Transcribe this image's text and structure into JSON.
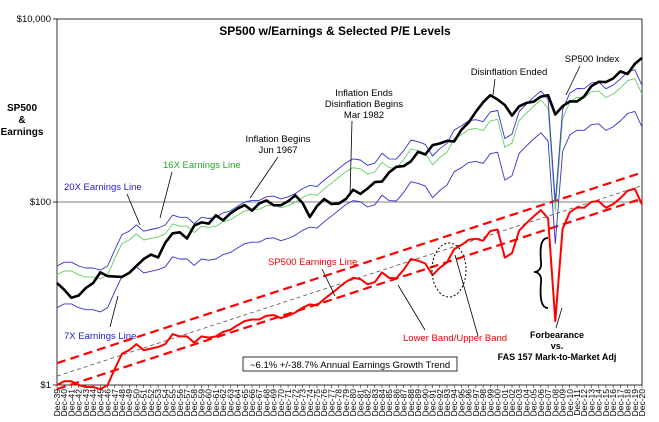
{
  "chart_data": {
    "type": "line",
    "title": "SP500 w/Earnings & Selected P/E Levels",
    "ylabel_lines": [
      "SP500",
      "&",
      "Earnings"
    ],
    "yscale": "log",
    "ylim": [
      1,
      10000
    ],
    "y_ticks": [
      {
        "value": 1,
        "label": "$1"
      },
      {
        "value": 100,
        "label": "$100"
      },
      {
        "value": 10000,
        "label": "$10,000"
      }
    ],
    "xlim": [
      1939,
      2020
    ],
    "x_tick_labels": [
      "Dec-39",
      "Dec-40",
      "Dec-41",
      "Dec-42",
      "Dec-43",
      "Dec-44",
      "Dec-45",
      "Dec-46",
      "Dec-47",
      "Dec-48",
      "Dec-49",
      "Dec-50",
      "Dec-51",
      "Dec-52",
      "Dec-53",
      "Dec-54",
      "Dec-55",
      "Dec-56",
      "Dec-57",
      "Dec-58",
      "Dec-59",
      "Dec-60",
      "Dec-61",
      "Dec-62",
      "Dec-63",
      "Dec-64",
      "Dec-65",
      "Dec-66",
      "Dec-67",
      "Dec-68",
      "Dec-69",
      "Dec-70",
      "Dec-71",
      "Dec-72",
      "Dec-73",
      "Dec-74",
      "Dec-75",
      "Dec-76",
      "Dec-77",
      "Dec-78",
      "Dec-79",
      "Dec-80",
      "Dec-81",
      "Dec-82",
      "Dec-83",
      "Dec-84",
      "Dec-85",
      "Dec-86",
      "Dec-87",
      "Dec-88",
      "Dec-89",
      "Dec-90",
      "Dec-91",
      "Dec-92",
      "Dec-93",
      "Dec-94",
      "Dec-95",
      "Dec-96",
      "Dec-97",
      "Dec-98",
      "Dec-99",
      "Dec-00",
      "Dec-01",
      "Dec-02",
      "Dec-03",
      "Dec-04",
      "Dec-05",
      "Dec-06",
      "Dec-07",
      "Dec-08",
      "Dec-09",
      "Dec-10",
      "Dec-11",
      "Dec-12",
      "Dec-13",
      "Dec-14",
      "Dec-15",
      "Dec-16",
      "Dec-17",
      "Dec-18",
      "Dec-19",
      "Dec-20"
    ],
    "x_tick_years": [
      1939,
      1940,
      1941,
      1942,
      1943,
      1944,
      1945,
      1946,
      1947,
      1948,
      1949,
      1950,
      1951,
      1952,
      1953,
      1954,
      1955,
      1956,
      1957,
      1958,
      1959,
      1960,
      1961,
      1962,
      1963,
      1964,
      1965,
      1966,
      1967,
      1968,
      1969,
      1970,
      1971,
      1972,
      1973,
      1974,
      1975,
      1976,
      1977,
      1978,
      1979,
      1980,
      1981,
      1982,
      1983,
      1984,
      1985,
      1986,
      1987,
      1988,
      1989,
      1990,
      1991,
      1992,
      1993,
      1994,
      1995,
      1996,
      1997,
      1998,
      1999,
      2000,
      2001,
      2002,
      2003,
      2004,
      2005,
      2006,
      2007,
      2008,
      2009,
      2010,
      2011,
      2012,
      2013,
      2014,
      2015,
      2016,
      2017,
      2018,
      2019,
      2020
    ],
    "series": [
      {
        "name": "SP500 Index",
        "color": "#000000",
        "width": 2.6,
        "x": [
          1939,
          1940,
          1941,
          1942,
          1943,
          1944,
          1945,
          1946,
          1947,
          1948,
          1949,
          1950,
          1951,
          1952,
          1953,
          1954,
          1955,
          1956,
          1957,
          1958,
          1959,
          1960,
          1961,
          1962,
          1963,
          1964,
          1965,
          1966,
          1967,
          1968,
          1969,
          1970,
          1971,
          1972,
          1973,
          1974,
          1975,
          1976,
          1977,
          1978,
          1979,
          1980,
          1981,
          1982,
          1983,
          1984,
          1985,
          1986,
          1987,
          1988,
          1989,
          1990,
          1991,
          1992,
          1993,
          1994,
          1995,
          1996,
          1997,
          1998,
          1999,
          2000,
          2001,
          2002,
          2003,
          2004,
          2005,
          2006,
          2007,
          2008,
          2009,
          2010,
          2011,
          2012,
          2013,
          2014,
          2015,
          2016,
          2017,
          2018,
          2019,
          2020
        ],
        "y": [
          13,
          11,
          9,
          9.5,
          11.5,
          13,
          17,
          15.5,
          15.3,
          15.2,
          16.8,
          20,
          23.8,
          26.6,
          24.8,
          35.9,
          45.5,
          46.7,
          39.9,
          55.2,
          59.9,
          58.1,
          71.6,
          63.1,
          75.0,
          84.8,
          92.4,
          80.3,
          96.5,
          103.9,
          92.1,
          92.2,
          102.1,
          118.1,
          97.6,
          68.6,
          90.2,
          107.5,
          95.1,
          96.1,
          107.9,
          135.8,
          122.6,
          140.6,
          164.9,
          167.2,
          211.3,
          242.2,
          247.1,
          277.7,
          353.4,
          330.2,
          417.1,
          435.7,
          466.5,
          459.3,
          615.9,
          740.7,
          970.4,
          1229.2,
          1469.3,
          1320.3,
          1148.1,
          879.8,
          1111.9,
          1211.9,
          1248.3,
          1418.3,
          1468.4,
          903.3,
          1115.1,
          1257.6,
          1257.6,
          1426.2,
          1848.4,
          2058.9,
          2043.9,
          2238.8,
          2673.6,
          2506.9,
          3230.8,
          3756.1
        ]
      },
      {
        "name": "SP500 Earnings Line",
        "color": "#ff0000",
        "width": 2.0,
        "x": [
          1939,
          1940,
          1941,
          1942,
          1943,
          1944,
          1945,
          1946,
          1947,
          1948,
          1949,
          1950,
          1951,
          1952,
          1953,
          1954,
          1955,
          1956,
          1957,
          1958,
          1959,
          1960,
          1961,
          1962,
          1963,
          1964,
          1965,
          1966,
          1967,
          1968,
          1969,
          1970,
          1971,
          1972,
          1973,
          1974,
          1975,
          1976,
          1977,
          1978,
          1979,
          1980,
          1981,
          1982,
          1983,
          1984,
          1985,
          1986,
          1987,
          1988,
          1989,
          1990,
          1991,
          1992,
          1993,
          1994,
          1995,
          1996,
          1997,
          1998,
          1999,
          2000,
          2001,
          2002,
          2003,
          2004,
          2005,
          2006,
          2007,
          2008,
          2009,
          2010,
          2011,
          2012,
          2013,
          2014,
          2015,
          2016,
          2017,
          2018,
          2019,
          2020
        ],
        "y": [
          1.0,
          1.1,
          1.1,
          1.0,
          0.95,
          0.95,
          0.9,
          1.0,
          1.5,
          2.2,
          2.4,
          2.8,
          2.4,
          2.5,
          2.6,
          2.8,
          3.6,
          3.4,
          3.4,
          2.9,
          3.4,
          3.3,
          3.4,
          3.8,
          4.0,
          4.5,
          5.0,
          5.2,
          5.2,
          5.7,
          5.8,
          5.4,
          5.7,
          6.2,
          7.0,
          7.6,
          7.4,
          8.7,
          10.0,
          11.6,
          13.4,
          14.8,
          14.4,
          12.6,
          13.3,
          17.0,
          14.8,
          14.7,
          18.2,
          23.8,
          22.8,
          21.3,
          15.9,
          19.1,
          21.9,
          30.6,
          33.9,
          38.7,
          39.7,
          37.7,
          48.2,
          50.0,
          24.7,
          27.6,
          48.7,
          58.6,
          69.8,
          81.5,
          66.2,
          5.0,
          50.9,
          77.4,
          87.0,
          86.5,
          100.2,
          102.3,
          86.5,
          94.6,
          109.9,
          132.4,
          139.5,
          94.1
        ]
      },
      {
        "name": "20X Earnings Line",
        "color": "#3333cc",
        "width": 0.9,
        "x": [
          1939,
          1940,
          1941,
          1942,
          1943,
          1944,
          1945,
          1946,
          1947,
          1948,
          1949,
          1950,
          1951,
          1952,
          1953,
          1954,
          1955,
          1956,
          1957,
          1958,
          1959,
          1960,
          1961,
          1962,
          1963,
          1964,
          1965,
          1966,
          1967,
          1968,
          1969,
          1970,
          1971,
          1972,
          1973,
          1974,
          1975,
          1976,
          1977,
          1978,
          1979,
          1980,
          1981,
          1982,
          1983,
          1984,
          1985,
          1986,
          1987,
          1988,
          1989,
          1990,
          1991,
          1992,
          1993,
          1994,
          1995,
          1996,
          1997,
          1998,
          1999,
          2000,
          2001,
          2002,
          2003,
          2004,
          2005,
          2006,
          2007,
          2008,
          2009,
          2010,
          2011,
          2012,
          2013,
          2014,
          2015,
          2016,
          2017,
          2018,
          2019,
          2020
        ],
        "y": [
          20,
          22,
          22,
          20,
          19,
          19,
          18,
          20,
          30,
          44,
          48,
          56,
          48,
          50,
          52,
          56,
          72,
          68,
          68,
          58,
          68,
          66,
          68,
          76,
          80,
          90,
          100,
          104,
          104,
          114,
          116,
          108,
          114,
          124,
          140,
          152,
          148,
          174,
          200,
          232,
          268,
          296,
          288,
          252,
          266,
          340,
          296,
          294,
          364,
          476,
          456,
          426,
          318,
          382,
          438,
          612,
          678,
          774,
          794,
          754,
          964,
          1000,
          494,
          552,
          974,
          1172,
          1396,
          1630,
          1324,
          100,
          1018,
          1548,
          1740,
          1730,
          2004,
          2046,
          1730,
          1892,
          2198,
          2648,
          2790,
          1882
        ]
      },
      {
        "name": "16X Earnings Line",
        "color": "#66cc66",
        "width": 0.9,
        "x": [
          1939,
          1940,
          1941,
          1942,
          1943,
          1944,
          1945,
          1946,
          1947,
          1948,
          1949,
          1950,
          1951,
          1952,
          1953,
          1954,
          1955,
          1956,
          1957,
          1958,
          1959,
          1960,
          1961,
          1962,
          1963,
          1964,
          1965,
          1966,
          1967,
          1968,
          1969,
          1970,
          1971,
          1972,
          1973,
          1974,
          1975,
          1976,
          1977,
          1978,
          1979,
          1980,
          1981,
          1982,
          1983,
          1984,
          1985,
          1986,
          1987,
          1988,
          1989,
          1990,
          1991,
          1992,
          1993,
          1994,
          1995,
          1996,
          1997,
          1998,
          1999,
          2000,
          2001,
          2002,
          2003,
          2004,
          2005,
          2006,
          2007,
          2008,
          2009,
          2010,
          2011,
          2012,
          2013,
          2014,
          2015,
          2016,
          2017,
          2018,
          2019,
          2020
        ],
        "y": [
          16,
          17.6,
          17.6,
          16,
          15.2,
          15.2,
          14.4,
          16,
          24,
          35.2,
          38.4,
          44.8,
          38.4,
          40,
          41.6,
          44.8,
          57.6,
          54.4,
          54.4,
          46.4,
          54.4,
          52.8,
          54.4,
          60.8,
          64,
          72,
          80,
          83.2,
          83.2,
          91.2,
          92.8,
          86.4,
          91.2,
          99.2,
          112,
          121.6,
          118.4,
          139.2,
          160,
          185.6,
          214.4,
          236.8,
          230.4,
          201.6,
          212.8,
          272,
          236.8,
          235.2,
          291.2,
          380.8,
          364.8,
          340.8,
          254.4,
          305.6,
          350.4,
          489.6,
          542.4,
          619.2,
          635.2,
          603.2,
          771.2,
          800,
          395.2,
          441.6,
          779.2,
          937.6,
          1116.8,
          1304,
          1059.2,
          80,
          814.4,
          1238.4,
          1392,
          1384,
          1603.2,
          1636.8,
          1384,
          1513.6,
          1758.4,
          2118.4,
          2232,
          1505.6
        ]
      },
      {
        "name": "7X Earnings Line",
        "color": "#3333cc",
        "width": 0.9,
        "x": [
          1939,
          1940,
          1941,
          1942,
          1943,
          1944,
          1945,
          1946,
          1947,
          1948,
          1949,
          1950,
          1951,
          1952,
          1953,
          1954,
          1955,
          1956,
          1957,
          1958,
          1959,
          1960,
          1961,
          1962,
          1963,
          1964,
          1965,
          1966,
          1967,
          1968,
          1969,
          1970,
          1971,
          1972,
          1973,
          1974,
          1975,
          1976,
          1977,
          1978,
          1979,
          1980,
          1981,
          1982,
          1983,
          1984,
          1985,
          1986,
          1987,
          1988,
          1989,
          1990,
          1991,
          1992,
          1993,
          1994,
          1995,
          1996,
          1997,
          1998,
          1999,
          2000,
          2001,
          2002,
          2003,
          2004,
          2005,
          2006,
          2007,
          2008,
          2009,
          2010,
          2011,
          2012,
          2013,
          2014,
          2015,
          2016,
          2017,
          2018,
          2019,
          2020
        ],
        "y": [
          7,
          7.7,
          7.7,
          7,
          6.65,
          6.65,
          6.3,
          7,
          10.5,
          15.4,
          16.8,
          19.6,
          16.8,
          17.5,
          18.2,
          19.6,
          25.2,
          23.8,
          23.8,
          20.3,
          23.8,
          23.1,
          23.8,
          26.6,
          28,
          31.5,
          35,
          36.4,
          36.4,
          39.9,
          40.6,
          37.8,
          39.9,
          43.4,
          49,
          53.2,
          51.8,
          60.9,
          70,
          81.2,
          93.8,
          103.6,
          100.8,
          88.2,
          93.1,
          119,
          103.6,
          102.9,
          127.4,
          166.6,
          159.6,
          149.1,
          111.3,
          133.7,
          153.3,
          214.2,
          237.3,
          270.9,
          277.9,
          263.9,
          337.4,
          350,
          172.9,
          193.2,
          340.9,
          410.2,
          488.6,
          570.5,
          463.4,
          35,
          356.3,
          541.8,
          609,
          605.5,
          701.4,
          716.1,
          605.5,
          662.2,
          769.3,
          926.8,
          976.5,
          658.7
        ]
      }
    ],
    "trend": {
      "label": "~6.1% +/-38.7% Annual Earnings Growth Trend",
      "growth_rate": 0.061,
      "band": 0.387,
      "y_1939": 1.25,
      "color_band": "#ff0000",
      "color_trend": "#555555"
    },
    "annotations": {
      "inflation_begins": [
        "Inflation Begins",
        "Jun 1967"
      ],
      "inflation_ends": [
        "Inflation Ends",
        "Disinflation Begins",
        "Mar 1982"
      ],
      "disinflation_ended": "Disinflation Ended",
      "sp500_index_label": "SP500 Index",
      "x16_label": "16X Earnings Line",
      "x20_label": "20X Earnings Line",
      "x7_label": "7X Earnings Line",
      "earnings_label": "SP500 Earnings Line",
      "band_label": "Lower Band/Upper Band",
      "forbearance": [
        "Forbearance",
        "vs.",
        "FAS 157 Mark-to-Market Adj"
      ]
    },
    "colors": {
      "index": "#000000",
      "earnings": "#ff0000",
      "x20": "#3333cc",
      "x16": "#66cc66",
      "x7": "#3333cc",
      "label_green": "#22aa22",
      "label_blue": "#2222cc",
      "label_red": "#ee0000"
    }
  }
}
